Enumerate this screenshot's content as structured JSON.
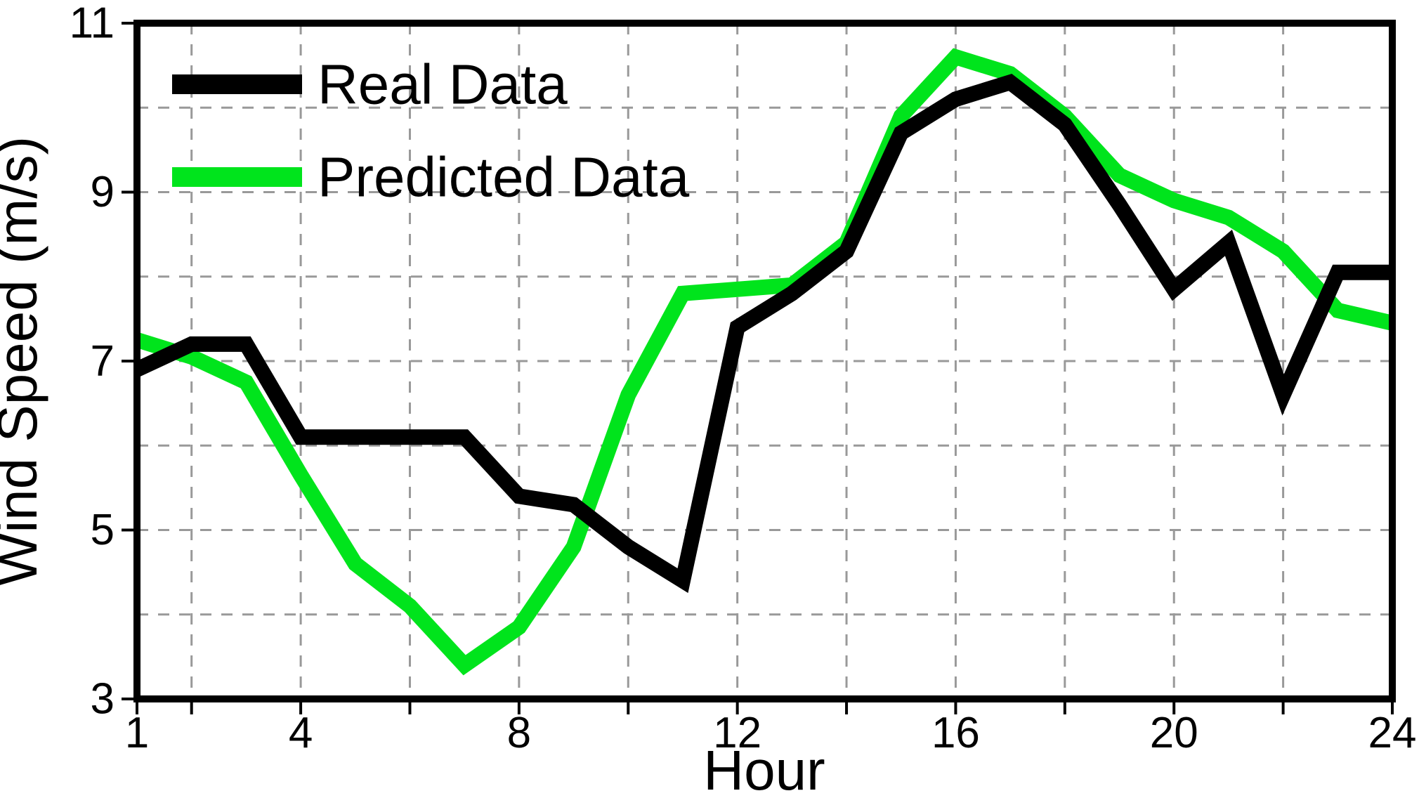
{
  "figure": {
    "background": "#ffffff",
    "frame_color": "#000000",
    "grid_color": "#999999",
    "line_width": 22
  },
  "chart_data": {
    "type": "line",
    "title": "",
    "xlabel": "Hour",
    "ylabel": "Wind Speed (m/s)",
    "x": [
      1,
      2,
      3,
      4,
      5,
      6,
      7,
      8,
      9,
      10,
      11,
      12,
      13,
      14,
      15,
      16,
      17,
      18,
      19,
      20,
      21,
      22,
      23,
      24
    ],
    "series": [
      {
        "name": "Real Data",
        "color": "#000000",
        "values": [
          6.9,
          7.2,
          7.2,
          6.1,
          6.1,
          6.1,
          6.1,
          5.4,
          5.3,
          4.8,
          4.4,
          7.4,
          7.8,
          8.3,
          9.7,
          10.1,
          10.3,
          9.8,
          8.85,
          7.85,
          8.4,
          6.6,
          8.05,
          8.05
        ]
      },
      {
        "name": "Predicted Data",
        "color": "#00e41c",
        "values": [
          7.25,
          7.05,
          6.75,
          5.65,
          4.6,
          4.1,
          3.4,
          3.85,
          4.8,
          6.6,
          7.8,
          7.85,
          7.9,
          8.4,
          9.9,
          10.6,
          10.4,
          9.9,
          9.2,
          8.9,
          8.7,
          8.3,
          7.6,
          7.45
        ]
      }
    ],
    "xlim": [
      1,
      24
    ],
    "ylim": [
      3,
      11
    ],
    "x_ticks": [
      1,
      4,
      8,
      12,
      16,
      20,
      24
    ],
    "y_ticks": [
      3,
      5,
      7,
      9,
      11
    ],
    "x_gridlines": [
      2,
      4,
      6,
      8,
      10,
      12,
      14,
      16,
      18,
      20,
      22
    ],
    "y_gridlines": [
      4,
      5,
      6,
      7,
      8,
      9,
      10
    ],
    "grid_style": "dashed",
    "legend_position": "upper-left",
    "legend_box": false
  }
}
